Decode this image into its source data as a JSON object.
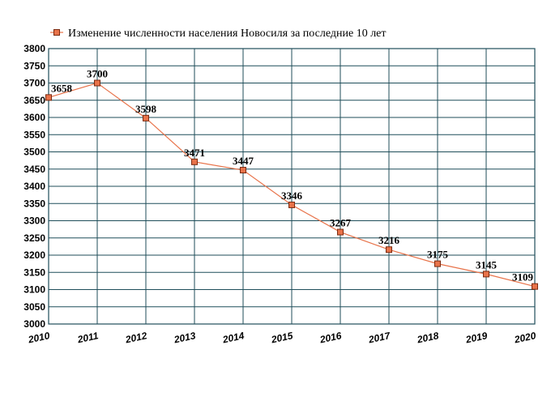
{
  "chart_data": {
    "type": "line",
    "title": "",
    "xlabel": "",
    "ylabel": "",
    "x": [
      2010,
      2011,
      2012,
      2013,
      2014,
      2015,
      2016,
      2017,
      2018,
      2019,
      2020
    ],
    "series": [
      {
        "name": "Изменение численности населения Новосиля за последние 10 лет",
        "values": [
          3658,
          3700,
          3598,
          3471,
          3447,
          3346,
          3267,
          3216,
          3175,
          3145,
          3109
        ],
        "color": "#e8734a",
        "marker_fill": "#e8734a",
        "marker_stroke": "#7a2a10"
      }
    ],
    "x_ticks": [
      "2010",
      "2011",
      "2012",
      "2013",
      "2014",
      "2015",
      "2016",
      "2017",
      "2018",
      "2019",
      "2020"
    ],
    "y_ticks": [
      "3000",
      "3050",
      "3100",
      "3150",
      "3200",
      "3250",
      "3300",
      "3350",
      "3400",
      "3450",
      "3500",
      "3550",
      "3600",
      "3650",
      "3700",
      "3750",
      "3800"
    ],
    "data_labels": [
      "3658",
      "3700",
      "3598",
      "3471",
      "3447",
      "3346",
      "3267",
      "3216",
      "3175",
      "3145",
      "3109"
    ],
    "ylim": [
      3000,
      3800
    ],
    "xlim": [
      2010,
      2020
    ],
    "grid": true,
    "grid_color": "#1f4e5a",
    "legend": "top-left"
  }
}
